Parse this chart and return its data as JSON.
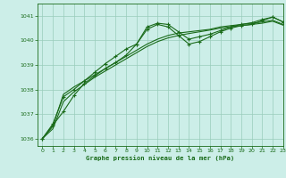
{
  "xlabel": "Graphe pression niveau de la mer (hPa)",
  "xlim": [
    -0.5,
    23
  ],
  "ylim": [
    1035.7,
    1041.5
  ],
  "yticks": [
    1036,
    1037,
    1038,
    1039,
    1040,
    1041
  ],
  "xticks": [
    0,
    1,
    2,
    3,
    4,
    5,
    6,
    7,
    8,
    9,
    10,
    11,
    12,
    13,
    14,
    15,
    16,
    17,
    18,
    19,
    20,
    21,
    22,
    23
  ],
  "bg_color": "#cceee8",
  "grid_color": "#99ccbb",
  "line_color": "#1a6b1a",
  "series_main": [
    1036.0,
    1036.55,
    1037.1,
    1037.75,
    1038.25,
    1038.55,
    1038.85,
    1039.1,
    1039.4,
    1039.85,
    1040.45,
    1040.65,
    1040.55,
    1040.2,
    1039.85,
    1039.95,
    1040.15,
    1040.35,
    1040.5,
    1040.6,
    1040.65,
    1040.8,
    1040.95,
    1040.75
  ],
  "series_smooth1": [
    1036.0,
    1036.5,
    1037.8,
    1038.1,
    1038.35,
    1038.6,
    1038.85,
    1039.1,
    1039.35,
    1039.6,
    1039.85,
    1040.05,
    1040.2,
    1040.3,
    1040.35,
    1040.4,
    1040.45,
    1040.55,
    1040.6,
    1040.65,
    1040.7,
    1040.75,
    1040.82,
    1040.65
  ],
  "series_smooth2": [
    1036.0,
    1036.4,
    1037.5,
    1037.9,
    1038.2,
    1038.5,
    1038.75,
    1039.0,
    1039.25,
    1039.5,
    1039.75,
    1039.95,
    1040.1,
    1040.2,
    1040.28,
    1040.35,
    1040.42,
    1040.5,
    1040.55,
    1040.6,
    1040.65,
    1040.7,
    1040.78,
    1040.62
  ],
  "series_upper": [
    1036.0,
    1036.6,
    1037.7,
    1038.0,
    1038.35,
    1038.7,
    1039.05,
    1039.35,
    1039.65,
    1039.85,
    1040.55,
    1040.7,
    1040.65,
    1040.35,
    1040.05,
    1040.15,
    1040.25,
    1040.4,
    1040.55,
    1040.65,
    1040.72,
    1040.85,
    1040.95,
    1040.75
  ]
}
